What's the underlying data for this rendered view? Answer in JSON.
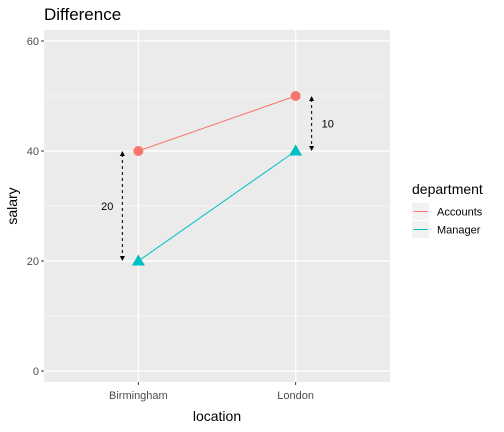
{
  "chart_data": {
    "type": "line",
    "title": "Difference",
    "xlabel": "location",
    "ylabel": "salary",
    "categories": [
      "Birmingham",
      "London"
    ],
    "ylim": [
      -2,
      62
    ],
    "yticks": [
      0,
      20,
      40,
      60
    ],
    "grid": true,
    "legend": {
      "title": "department",
      "placement": "right"
    },
    "series": [
      {
        "name": "Accounts",
        "values": [
          40,
          50
        ],
        "color": "#F8766D",
        "marker": "circle"
      },
      {
        "name": "Manager",
        "values": [
          20,
          40
        ],
        "color": "#00BFC4",
        "marker": "triangle"
      }
    ],
    "annotations": [
      {
        "category": "Birmingham",
        "from": 20,
        "to": 40,
        "label": "20",
        "side": "left"
      },
      {
        "category": "London",
        "from": 40,
        "to": 50,
        "label": "10",
        "side": "right"
      }
    ]
  }
}
